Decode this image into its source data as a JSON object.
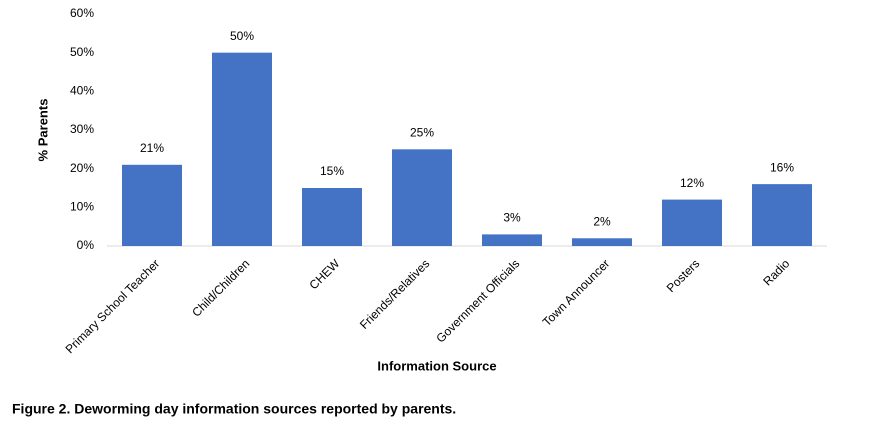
{
  "chart_data": {
    "type": "bar",
    "caption": "Figure 2. Deworming day information sources reported by parents.",
    "x_label": "Information Source",
    "y_label": "% Parents",
    "categories": [
      "Primary School Teacher",
      "Child/Children",
      "CHEW",
      "Friends/Relatives",
      "Government Officials",
      "Town Announcer",
      "Posters",
      "Radio"
    ],
    "values": [
      21,
      50,
      15,
      25,
      3,
      2,
      12,
      16
    ],
    "value_labels": [
      "21%",
      "50%",
      "15%",
      "25%",
      "3%",
      "2%",
      "12%",
      "16%"
    ],
    "color": "#4472c4",
    "ylim": [
      0,
      60
    ],
    "yticks": [
      {
        "value": 0,
        "label": "0%"
      },
      {
        "value": 10,
        "label": "10%"
      },
      {
        "value": 20,
        "label": "20%"
      },
      {
        "value": 30,
        "label": "30%"
      },
      {
        "value": 40,
        "label": "40%"
      },
      {
        "value": 50,
        "label": "50%"
      },
      {
        "value": 60,
        "label": "60%"
      }
    ],
    "grid": false
  }
}
